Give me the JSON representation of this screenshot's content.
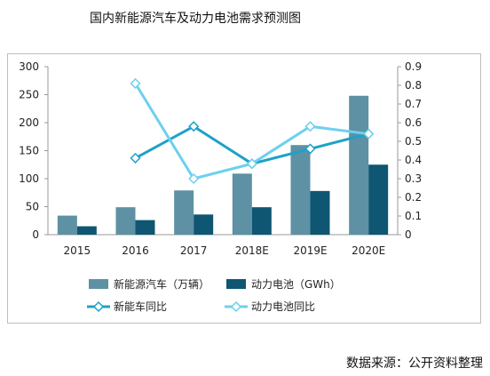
{
  "title": "国内新能源汽车及动力电池需求预测图",
  "source": "数据来源：公开资料整理",
  "colors": {
    "bar_ev": "#5e91a4",
    "bar_battery": "#0f5672",
    "line_ev": "#1ea1c9",
    "line_battery": "#6dd0ee",
    "axis": "#999999"
  },
  "chart_data": {
    "type": "bar",
    "categories": [
      "2015",
      "2016",
      "2017",
      "2018E",
      "2019E",
      "2020E"
    ],
    "ylim": [
      0,
      300
    ],
    "yticks": [
      "0",
      "50",
      "100",
      "150",
      "200",
      "250",
      "300"
    ],
    "y2lim": [
      0,
      0.9
    ],
    "y2ticks": [
      "0",
      "0.1",
      "0.2",
      "0.3",
      "0.4",
      "0.5",
      "0.6",
      "0.7",
      "0.8",
      "0.9"
    ],
    "series": [
      {
        "name": "新能源汽车（万辆）",
        "type": "bar",
        "axis": "left",
        "values": [
          34,
          49,
          79,
          109,
          160,
          248
        ]
      },
      {
        "name": "动力电池（GWh）",
        "type": "bar",
        "axis": "left",
        "values": [
          15,
          26,
          36,
          49,
          78,
          125
        ]
      },
      {
        "name": "新能车同比",
        "type": "line",
        "axis": "right",
        "values": [
          null,
          0.41,
          0.58,
          0.38,
          0.46,
          0.54
        ]
      },
      {
        "name": "动力电池同比",
        "type": "line",
        "axis": "right",
        "values": [
          null,
          0.81,
          0.3,
          0.38,
          0.58,
          0.54
        ]
      }
    ],
    "legend_position": "bottom"
  }
}
